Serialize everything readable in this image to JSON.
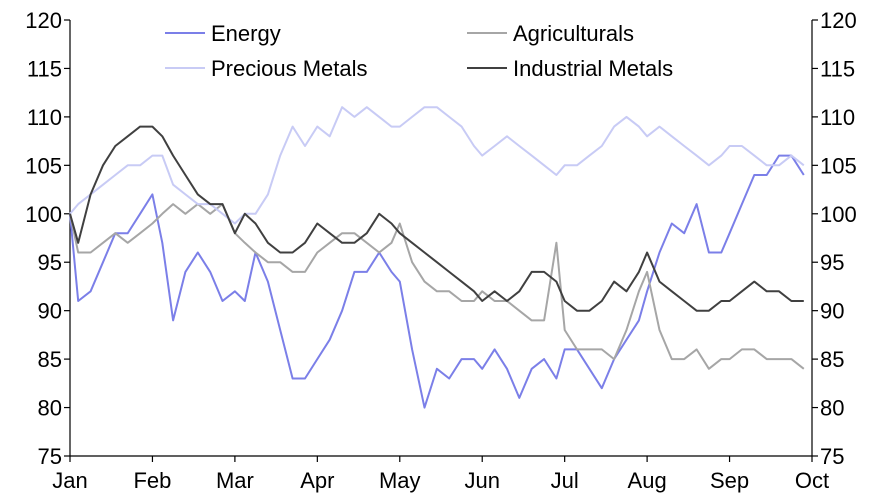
{
  "chart_data": {
    "type": "line",
    "title": "",
    "xlabel": "",
    "ylabel": "",
    "ylim": [
      75,
      120
    ],
    "yticks": [
      75,
      80,
      85,
      90,
      95,
      100,
      105,
      110,
      115,
      120
    ],
    "right_axis": true,
    "grid": false,
    "legend_position": "top",
    "months": [
      "Jan",
      "Feb",
      "Mar",
      "Apr",
      "May",
      "Jun",
      "Jul",
      "Aug",
      "Sep",
      "Oct"
    ],
    "series": [
      {
        "name": "Energy",
        "color": "#7b7fe8",
        "x": [
          0.0,
          0.1,
          0.25,
          0.4,
          0.55,
          0.7,
          0.85,
          1.0,
          1.12,
          1.25,
          1.4,
          1.55,
          1.7,
          1.85,
          2.0,
          2.12,
          2.25,
          2.4,
          2.55,
          2.7,
          2.85,
          3.0,
          3.15,
          3.3,
          3.45,
          3.6,
          3.75,
          3.9,
          4.0,
          4.15,
          4.3,
          4.45,
          4.6,
          4.75,
          4.9,
          5.0,
          5.15,
          5.3,
          5.45,
          5.6,
          5.75,
          5.9,
          6.0,
          6.15,
          6.3,
          6.45,
          6.6,
          6.75,
          6.9,
          7.0,
          7.15,
          7.3,
          7.45,
          7.6,
          7.75,
          7.9,
          8.0,
          8.15,
          8.3,
          8.45,
          8.6,
          8.75,
          8.9
        ],
        "values": [
          100,
          91,
          92,
          95,
          98,
          98,
          100,
          102,
          97,
          89,
          94,
          96,
          94,
          91,
          92,
          91,
          96,
          93,
          88,
          83,
          83,
          85,
          87,
          90,
          94,
          94,
          96,
          94,
          93,
          86,
          80,
          84,
          83,
          85,
          85,
          84,
          86,
          84,
          81,
          84,
          85,
          83,
          86,
          86,
          84,
          82,
          85,
          87,
          89,
          92,
          96,
          99,
          98,
          101,
          96,
          96,
          98,
          101,
          104,
          104,
          106,
          106,
          104
        ]
      },
      {
        "name": "Agriculturals",
        "color": "#a6a6a6",
        "x": [
          0.0,
          0.1,
          0.25,
          0.4,
          0.55,
          0.7,
          0.85,
          1.0,
          1.12,
          1.25,
          1.4,
          1.55,
          1.7,
          1.85,
          2.0,
          2.12,
          2.25,
          2.4,
          2.55,
          2.7,
          2.85,
          3.0,
          3.15,
          3.3,
          3.45,
          3.6,
          3.75,
          3.9,
          4.0,
          4.15,
          4.3,
          4.45,
          4.6,
          4.75,
          4.9,
          5.0,
          5.15,
          5.3,
          5.45,
          5.6,
          5.75,
          5.9,
          6.0,
          6.15,
          6.3,
          6.45,
          6.6,
          6.75,
          6.9,
          7.0,
          7.15,
          7.3,
          7.45,
          7.6,
          7.75,
          7.9,
          8.0,
          8.15,
          8.3,
          8.45,
          8.6,
          8.75,
          8.9
        ],
        "values": [
          100,
          96,
          96,
          97,
          98,
          97,
          98,
          99,
          100,
          101,
          100,
          101,
          100,
          101,
          98,
          97,
          96,
          95,
          95,
          94,
          94,
          96,
          97,
          98,
          98,
          97,
          96,
          97,
          99,
          95,
          93,
          92,
          92,
          91,
          91,
          92,
          91,
          91,
          90,
          89,
          89,
          97,
          88,
          86,
          86,
          86,
          85,
          88,
          92,
          94,
          88,
          85,
          85,
          86,
          84,
          85,
          85,
          86,
          86,
          85,
          85,
          85,
          84
        ]
      },
      {
        "name": "Precious Metals",
        "color": "#c8cbf5",
        "x": [
          0.0,
          0.1,
          0.25,
          0.4,
          0.55,
          0.7,
          0.85,
          1.0,
          1.12,
          1.25,
          1.4,
          1.55,
          1.7,
          1.85,
          2.0,
          2.12,
          2.25,
          2.4,
          2.55,
          2.7,
          2.85,
          3.0,
          3.15,
          3.3,
          3.45,
          3.6,
          3.75,
          3.9,
          4.0,
          4.15,
          4.3,
          4.45,
          4.6,
          4.75,
          4.9,
          5.0,
          5.15,
          5.3,
          5.45,
          5.6,
          5.75,
          5.9,
          6.0,
          6.15,
          6.3,
          6.45,
          6.6,
          6.75,
          6.9,
          7.0,
          7.15,
          7.3,
          7.45,
          7.6,
          7.75,
          7.9,
          8.0,
          8.15,
          8.3,
          8.45,
          8.6,
          8.75,
          8.9
        ],
        "values": [
          100,
          101,
          102,
          103,
          104,
          105,
          105,
          106,
          106,
          103,
          102,
          101,
          101,
          100,
          99,
          100,
          100,
          102,
          106,
          109,
          107,
          109,
          108,
          111,
          110,
          111,
          110,
          109,
          109,
          110,
          111,
          111,
          110,
          109,
          107,
          106,
          107,
          108,
          107,
          106,
          105,
          104,
          105,
          105,
          106,
          107,
          109,
          110,
          109,
          108,
          109,
          108,
          107,
          106,
          105,
          106,
          107,
          107,
          106,
          105,
          105,
          106,
          105
        ]
      },
      {
        "name": "Industrial Metals",
        "color": "#404040",
        "x": [
          0.0,
          0.1,
          0.25,
          0.4,
          0.55,
          0.7,
          0.85,
          1.0,
          1.12,
          1.25,
          1.4,
          1.55,
          1.7,
          1.85,
          2.0,
          2.12,
          2.25,
          2.4,
          2.55,
          2.7,
          2.85,
          3.0,
          3.15,
          3.3,
          3.45,
          3.6,
          3.75,
          3.9,
          4.0,
          4.15,
          4.3,
          4.45,
          4.6,
          4.75,
          4.9,
          5.0,
          5.15,
          5.3,
          5.45,
          5.6,
          5.75,
          5.9,
          6.0,
          6.15,
          6.3,
          6.45,
          6.6,
          6.75,
          6.9,
          7.0,
          7.15,
          7.3,
          7.45,
          7.6,
          7.75,
          7.9,
          8.0,
          8.15,
          8.3,
          8.45,
          8.6,
          8.75,
          8.9
        ],
        "values": [
          100,
          97,
          102,
          105,
          107,
          108,
          109,
          109,
          108,
          106,
          104,
          102,
          101,
          101,
          98,
          100,
          99,
          97,
          96,
          96,
          97,
          99,
          98,
          97,
          97,
          98,
          100,
          99,
          98,
          97,
          96,
          95,
          94,
          93,
          92,
          91,
          92,
          91,
          92,
          94,
          94,
          93,
          91,
          90,
          90,
          91,
          93,
          92,
          94,
          96,
          93,
          92,
          91,
          90,
          90,
          91,
          91,
          92,
          93,
          92,
          92,
          91,
          91
        ]
      }
    ]
  }
}
